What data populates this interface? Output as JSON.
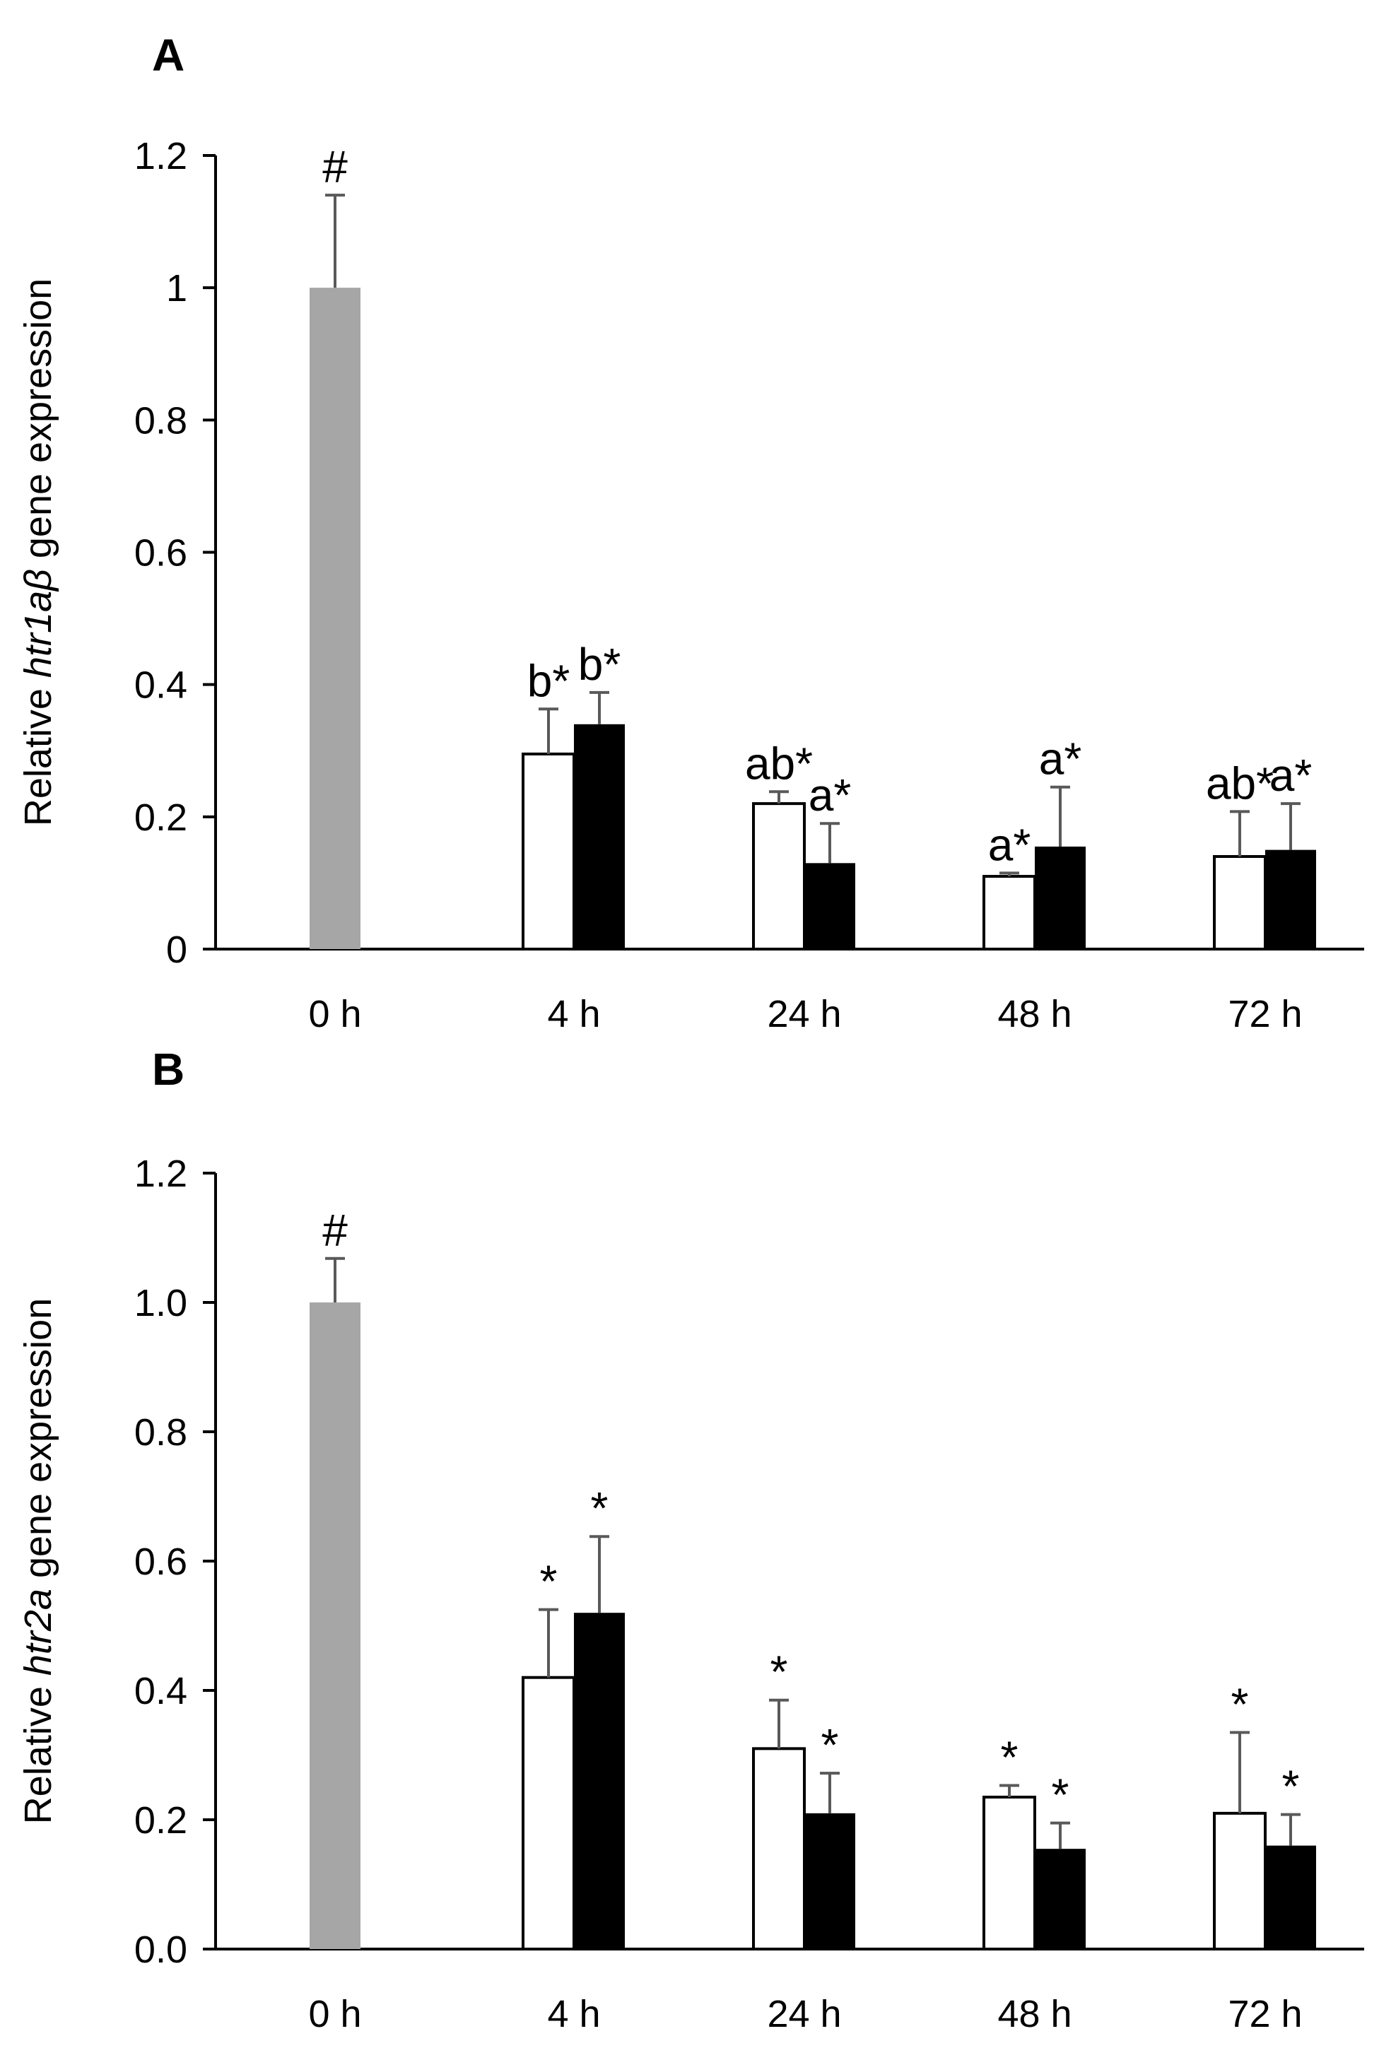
{
  "chart_data": [
    {
      "panel_label": "A",
      "type": "bar",
      "ylabel_prefix": "Relative ",
      "ylabel_gene": "htr1aβ",
      "ylabel_suffix": " gene expression",
      "ylim": [
        0,
        1.2
      ],
      "yticks": [
        "0",
        "0.2",
        "0.4",
        "0.6",
        "0.8",
        "1",
        "1.2"
      ],
      "tick_values": [
        0,
        0.2,
        0.4,
        0.6,
        0.8,
        1.0,
        1.2
      ],
      "categories": [
        "0 h",
        "4 h",
        "24 h",
        "48 h",
        "72 h"
      ],
      "series": [
        {
          "name": "control",
          "color": "#a6a6a6",
          "values": [
            1.0,
            null,
            null,
            null,
            null
          ],
          "errors": [
            0.14,
            null,
            null,
            null,
            null
          ],
          "annotations": [
            "#",
            "",
            "",
            "",
            ""
          ]
        },
        {
          "name": "open",
          "color": "#ffffff",
          "values": [
            null,
            0.295,
            0.22,
            0.11,
            0.14
          ],
          "errors": [
            null,
            0.068,
            0.018,
            0.005,
            0.068
          ],
          "annotations": [
            "",
            "b*",
            "ab*",
            "a*",
            "ab*"
          ]
        },
        {
          "name": "filled",
          "color": "#000000",
          "values": [
            null,
            0.34,
            0.13,
            0.155,
            0.15
          ],
          "errors": [
            null,
            0.048,
            0.06,
            0.09,
            0.07
          ],
          "annotations": [
            "",
            "b*",
            "a*",
            "a*",
            "a*"
          ]
        }
      ]
    },
    {
      "panel_label": "B",
      "type": "bar",
      "ylabel_prefix": "Relative ",
      "ylabel_gene": "htr2a",
      "ylabel_suffix": " gene expression",
      "ylim": [
        0,
        1.2
      ],
      "yticks": [
        "0.0",
        "0.2",
        "0.4",
        "0.6",
        "0.8",
        "1.0",
        "1.2"
      ],
      "tick_values": [
        0,
        0.2,
        0.4,
        0.6,
        0.8,
        1.0,
        1.2
      ],
      "categories": [
        "0 h",
        "4 h",
        "24 h",
        "48 h",
        "72 h"
      ],
      "series": [
        {
          "name": "control",
          "color": "#a6a6a6",
          "values": [
            1.0,
            null,
            null,
            null,
            null
          ],
          "errors": [
            0.068,
            null,
            null,
            null,
            null
          ],
          "annotations": [
            "#",
            "",
            "",
            "",
            ""
          ]
        },
        {
          "name": "open",
          "color": "#ffffff",
          "values": [
            null,
            0.42,
            0.31,
            0.235,
            0.21
          ],
          "errors": [
            null,
            0.105,
            0.075,
            0.018,
            0.125
          ],
          "annotations": [
            "",
            "*",
            "*",
            "*",
            "*"
          ]
        },
        {
          "name": "filled",
          "color": "#000000",
          "values": [
            null,
            0.52,
            0.21,
            0.155,
            0.16
          ],
          "errors": [
            null,
            0.118,
            0.062,
            0.04,
            0.048
          ],
          "annotations": [
            "",
            "*",
            "*",
            "*",
            "*"
          ]
        }
      ]
    }
  ]
}
